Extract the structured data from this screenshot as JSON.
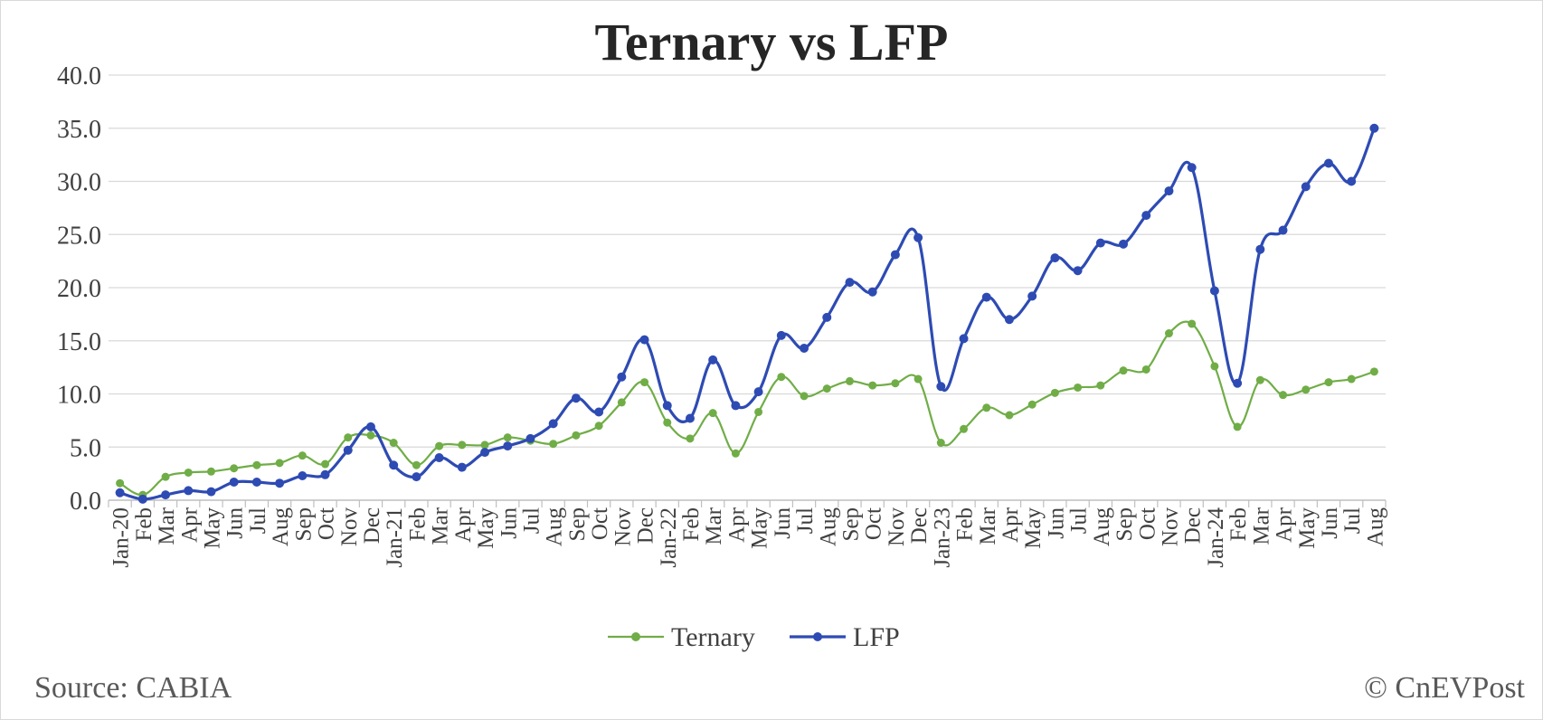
{
  "chart_data": {
    "type": "line",
    "title": "Ternary vs LFP",
    "ylim": [
      0,
      40
    ],
    "yticks": [
      "0.0",
      "5.0",
      "10.0",
      "15.0",
      "20.0",
      "25.0",
      "30.0",
      "35.0",
      "40.0"
    ],
    "grid": true,
    "legend_position": "bottom-center",
    "categories": [
      "Jan-20",
      "Feb",
      "Mar",
      "Apr",
      "May",
      "Jun",
      "Jul",
      "Aug",
      "Sep",
      "Oct",
      "Nov",
      "Dec",
      "Jan-21",
      "Feb",
      "Mar",
      "Apr",
      "May",
      "Jun",
      "Jul",
      "Aug",
      "Sep",
      "Oct",
      "Nov",
      "Dec",
      "Jan-22",
      "Feb",
      "Mar",
      "Apr",
      "May",
      "Jun",
      "Jul",
      "Aug",
      "Sep",
      "Oct",
      "Nov",
      "Dec",
      "Jan-23",
      "Feb",
      "Mar",
      "Apr",
      "May",
      "Jun",
      "Jul",
      "Aug",
      "Sep",
      "Oct",
      "Nov",
      "Dec",
      "Jan-24",
      "Feb",
      "Mar",
      "Apr",
      "May",
      "Jun",
      "Jul",
      "Aug"
    ],
    "series": [
      {
        "name": "Ternary",
        "color": "#70ad47",
        "values": [
          1.6,
          0.5,
          2.2,
          2.6,
          2.7,
          3.0,
          3.3,
          3.5,
          4.2,
          3.4,
          5.9,
          6.1,
          5.4,
          3.3,
          5.1,
          5.2,
          5.2,
          5.9,
          5.6,
          5.3,
          6.1,
          7.0,
          9.2,
          11.1,
          7.3,
          5.8,
          8.2,
          4.4,
          8.3,
          11.6,
          9.8,
          10.5,
          11.2,
          10.8,
          11.0,
          11.4,
          5.4,
          6.7,
          8.7,
          8.0,
          9.0,
          10.1,
          10.6,
          10.8,
          12.2,
          12.3,
          15.7,
          16.6,
          12.6,
          6.9,
          11.3,
          9.9,
          10.4,
          11.1,
          11.4,
          12.1
        ]
      },
      {
        "name": "LFP",
        "color": "#2e4bb3",
        "values": [
          0.7,
          0.1,
          0.5,
          0.9,
          0.8,
          1.7,
          1.7,
          1.6,
          2.3,
          2.4,
          4.7,
          6.9,
          3.3,
          2.2,
          4.0,
          3.1,
          4.5,
          5.1,
          5.8,
          7.2,
          9.6,
          8.3,
          11.6,
          15.1,
          8.9,
          7.7,
          13.2,
          8.9,
          10.2,
          15.5,
          14.3,
          17.2,
          20.5,
          19.6,
          23.1,
          24.7,
          10.7,
          15.2,
          19.1,
          17.0,
          19.2,
          22.8,
          21.6,
          24.2,
          24.1,
          26.8,
          29.1,
          31.3,
          19.7,
          11.0,
          23.6,
          25.4,
          29.5,
          31.7,
          30.0,
          35.0
        ]
      }
    ]
  },
  "header": {
    "title_line1": "Ternary vs LFP"
  },
  "footer": {
    "source": "Source: CABIA",
    "watermark": "© CnEVPost"
  }
}
